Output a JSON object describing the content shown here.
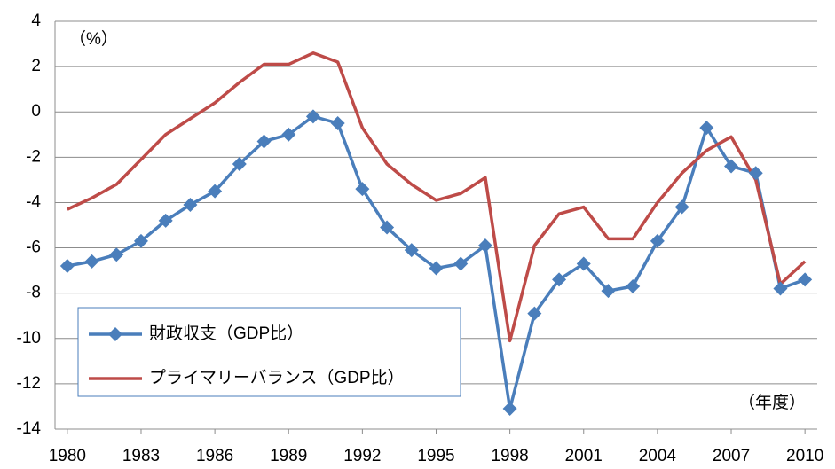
{
  "chart_data": {
    "type": "line",
    "x": [
      1980,
      1981,
      1982,
      1983,
      1984,
      1985,
      1986,
      1987,
      1988,
      1989,
      1990,
      1991,
      1992,
      1993,
      1994,
      1995,
      1996,
      1997,
      1998,
      1999,
      2000,
      2001,
      2002,
      2003,
      2004,
      2005,
      2006,
      2007,
      2008,
      2009,
      2010
    ],
    "xlim": [
      1979.5,
      2010.5
    ],
    "xticks": [
      1980,
      1983,
      1986,
      1989,
      1992,
      1995,
      1998,
      2001,
      2004,
      2007,
      2010
    ],
    "ylim": [
      -14,
      4
    ],
    "yticks": [
      -14,
      -12,
      -10,
      -8,
      -6,
      -4,
      -2,
      0,
      2,
      4
    ],
    "grid": true,
    "legend": "lower-left",
    "y_unit": "（%）",
    "x_unit": "（年度）",
    "series": [
      {
        "name": "財政収支（GDP比）",
        "color": "#4a7ebb",
        "marker": "diamond",
        "values": [
          -6.8,
          -6.6,
          -6.3,
          -5.7,
          -4.8,
          -4.1,
          -3.5,
          -2.3,
          -1.3,
          -1.0,
          -0.2,
          -0.5,
          -3.4,
          -5.1,
          -6.1,
          -6.9,
          -6.7,
          -5.9,
          -13.1,
          -8.9,
          -7.4,
          -6.7,
          -7.9,
          -7.7,
          -5.7,
          -4.2,
          -0.7,
          -2.4,
          -2.7,
          -7.8,
          -7.4
        ]
      },
      {
        "name": "プライマリーバランス（GDP比）",
        "color": "#be4b48",
        "values": [
          -4.3,
          -3.8,
          -3.2,
          -2.1,
          -1.0,
          -0.3,
          0.4,
          1.3,
          2.1,
          2.1,
          2.6,
          2.2,
          -0.7,
          -2.3,
          -3.2,
          -3.9,
          -3.6,
          -2.9,
          -10.1,
          -5.9,
          -4.5,
          -4.2,
          -5.6,
          -5.6,
          -4.0,
          -2.7,
          -1.7,
          -1.1,
          -3.0,
          -7.6,
          -6.6
        ]
      }
    ]
  }
}
